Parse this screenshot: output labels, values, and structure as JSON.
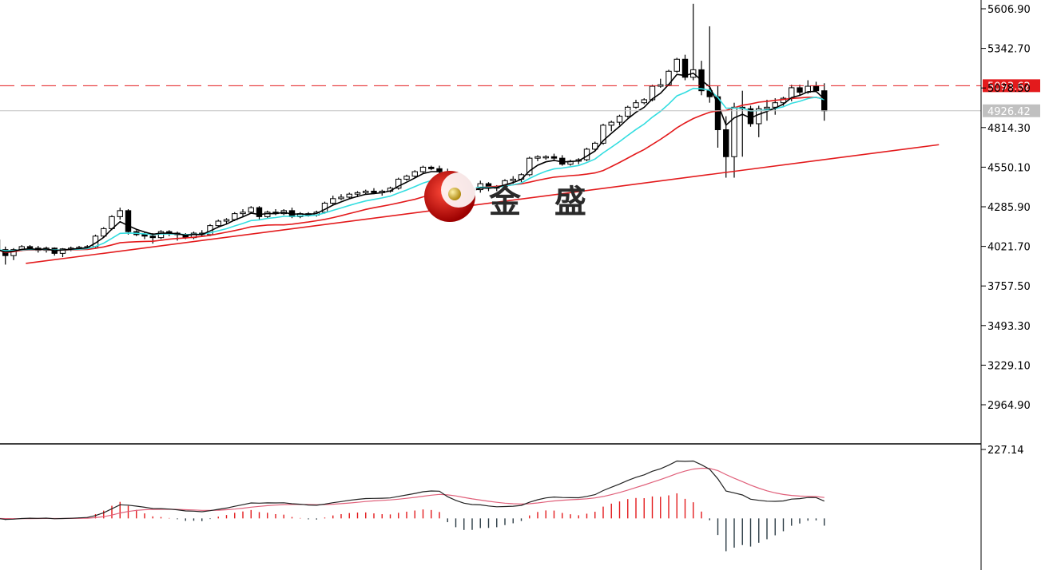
{
  "chart_data": {
    "type": "candlestick",
    "price_axis": {
      "ticks": [
        "5606.90",
        "5342.70",
        "5078.50",
        "4814.30",
        "4550.10",
        "4285.90",
        "4021.70",
        "3757.50",
        "3493.30",
        "3229.10",
        "2964.90"
      ],
      "range": [
        2850,
        5660
      ]
    },
    "price_markers": {
      "current_price": "5093.62",
      "crosshair_price": "4926.42",
      "current_color": "#e31a1c",
      "crosshair_color": "#c0c0c0"
    },
    "candles": [
      [
        4065,
        4100,
        3950,
        4000
      ],
      [
        4000,
        4020,
        3900,
        3960
      ],
      [
        3960,
        4010,
        3930,
        4000
      ],
      [
        4000,
        4030,
        3990,
        4020
      ],
      [
        4020,
        4030,
        4000,
        4010
      ],
      [
        4010,
        4025,
        3980,
        3995
      ],
      [
        3995,
        4020,
        3980,
        4010
      ],
      [
        4010,
        4015,
        3960,
        3975
      ],
      [
        3975,
        4010,
        3950,
        4005
      ],
      [
        4005,
        4020,
        3990,
        4010
      ],
      [
        4010,
        4025,
        4000,
        4015
      ],
      [
        4015,
        4030,
        4000,
        4020
      ],
      [
        4020,
        4100,
        4010,
        4090
      ],
      [
        4090,
        4150,
        4080,
        4140
      ],
      [
        4140,
        4230,
        4130,
        4220
      ],
      [
        4220,
        4280,
        4200,
        4260
      ],
      [
        4260,
        4270,
        4100,
        4120
      ],
      [
        4120,
        4130,
        4090,
        4100
      ],
      [
        4100,
        4120,
        4070,
        4090
      ],
      [
        4090,
        4110,
        4040,
        4080
      ],
      [
        4080,
        4130,
        4070,
        4120
      ],
      [
        4120,
        4130,
        4090,
        4110
      ],
      [
        4110,
        4120,
        4060,
        4100
      ],
      [
        4100,
        4110,
        4070,
        4080
      ],
      [
        4080,
        4120,
        4070,
        4110
      ],
      [
        4110,
        4130,
        4090,
        4100
      ],
      [
        4100,
        4170,
        4090,
        4160
      ],
      [
        4160,
        4200,
        4150,
        4190
      ],
      [
        4190,
        4210,
        4170,
        4200
      ],
      [
        4200,
        4250,
        4190,
        4240
      ],
      [
        4240,
        4270,
        4220,
        4250
      ],
      [
        4250,
        4290,
        4240,
        4280
      ],
      [
        4280,
        4290,
        4200,
        4220
      ],
      [
        4220,
        4260,
        4210,
        4250
      ],
      [
        4250,
        4270,
        4230,
        4240
      ],
      [
        4240,
        4270,
        4230,
        4260
      ],
      [
        4260,
        4280,
        4210,
        4220
      ],
      [
        4220,
        4250,
        4210,
        4240
      ],
      [
        4240,
        4250,
        4220,
        4230
      ],
      [
        4230,
        4260,
        4220,
        4250
      ],
      [
        4250,
        4320,
        4240,
        4310
      ],
      [
        4310,
        4360,
        4300,
        4340
      ],
      [
        4340,
        4370,
        4330,
        4350
      ],
      [
        4350,
        4380,
        4340,
        4370
      ],
      [
        4370,
        4390,
        4350,
        4380
      ],
      [
        4380,
        4400,
        4370,
        4390
      ],
      [
        4390,
        4410,
        4370,
        4380
      ],
      [
        4380,
        4400,
        4360,
        4390
      ],
      [
        4390,
        4420,
        4380,
        4410
      ],
      [
        4410,
        4480,
        4400,
        4470
      ],
      [
        4470,
        4500,
        4460,
        4490
      ],
      [
        4490,
        4530,
        4480,
        4520
      ],
      [
        4520,
        4560,
        4510,
        4550
      ],
      [
        4550,
        4560,
        4530,
        4540
      ],
      [
        4540,
        4560,
        4500,
        4520
      ],
      [
        4520,
        4540,
        4300,
        4310
      ],
      [
        4310,
        4360,
        4280,
        4350
      ],
      [
        4350,
        4380,
        4330,
        4360
      ],
      [
        4360,
        4420,
        4350,
        4400
      ],
      [
        4400,
        4460,
        4380,
        4440
      ],
      [
        4440,
        4450,
        4390,
        4410
      ],
      [
        4410,
        4430,
        4390,
        4420
      ],
      [
        4420,
        4470,
        4410,
        4460
      ],
      [
        4460,
        4490,
        4440,
        4470
      ],
      [
        4470,
        4510,
        4450,
        4500
      ],
      [
        4500,
        4620,
        4490,
        4610
      ],
      [
        4610,
        4630,
        4590,
        4620
      ],
      [
        4620,
        4630,
        4600,
        4620
      ],
      [
        4620,
        4640,
        4590,
        4610
      ],
      [
        4610,
        4630,
        4560,
        4570
      ],
      [
        4570,
        4600,
        4560,
        4590
      ],
      [
        4590,
        4610,
        4570,
        4600
      ],
      [
        4600,
        4680,
        4590,
        4670
      ],
      [
        4670,
        4720,
        4660,
        4710
      ],
      [
        4710,
        4840,
        4700,
        4830
      ],
      [
        4830,
        4860,
        4790,
        4850
      ],
      [
        4850,
        4900,
        4830,
        4890
      ],
      [
        4890,
        4960,
        4880,
        4950
      ],
      [
        4950,
        5000,
        4940,
        4980
      ],
      [
        4980,
        5010,
        4970,
        5000
      ],
      [
        5000,
        5100,
        4990,
        5090
      ],
      [
        5090,
        5140,
        5080,
        5100
      ],
      [
        5100,
        5200,
        5090,
        5190
      ],
      [
        5190,
        5280,
        5180,
        5270
      ],
      [
        5270,
        5300,
        5130,
        5150
      ],
      [
        5150,
        5640,
        5130,
        5200
      ],
      [
        5200,
        5260,
        5030,
        5060
      ],
      [
        5060,
        5490,
        4980,
        5020
      ],
      [
        5020,
        5090,
        4680,
        4800
      ],
      [
        4800,
        4890,
        4480,
        4620
      ],
      [
        4620,
        4980,
        4480,
        4950
      ],
      [
        4950,
        5060,
        4620,
        4940
      ],
      [
        4940,
        4960,
        4820,
        4840
      ],
      [
        4840,
        4960,
        4750,
        4940
      ],
      [
        4940,
        5000,
        4860,
        4950
      ],
      [
        4950,
        5010,
        4900,
        4980
      ],
      [
        4980,
        5020,
        4960,
        5010
      ],
      [
        5010,
        5100,
        4990,
        5080
      ],
      [
        5080,
        5100,
        5030,
        5050
      ],
      [
        5050,
        5130,
        5040,
        5090
      ],
      [
        5090,
        5120,
        5050,
        5060
      ],
      [
        5060,
        5110,
        4860,
        4926
      ]
    ],
    "trend_line": [
      [
        3.5,
        3908
      ],
      [
        115,
        4700
      ]
    ],
    "macd": {
      "max_label": "227.14",
      "range": [
        -170,
        227.14
      ]
    },
    "lines": {
      "ma_fast_color": "#000000",
      "ma_mid_color": "#33dde0",
      "ma_slow_color": "#e31a1c",
      "trend_color": "#e31a1c",
      "macd_fast_color": "#222222",
      "macd_slow_color": "#e0607a",
      "hist_up_color": "#e31a1c",
      "hist_down_color": "#2b3b44"
    }
  },
  "watermark": {
    "text": "金 盛"
  }
}
